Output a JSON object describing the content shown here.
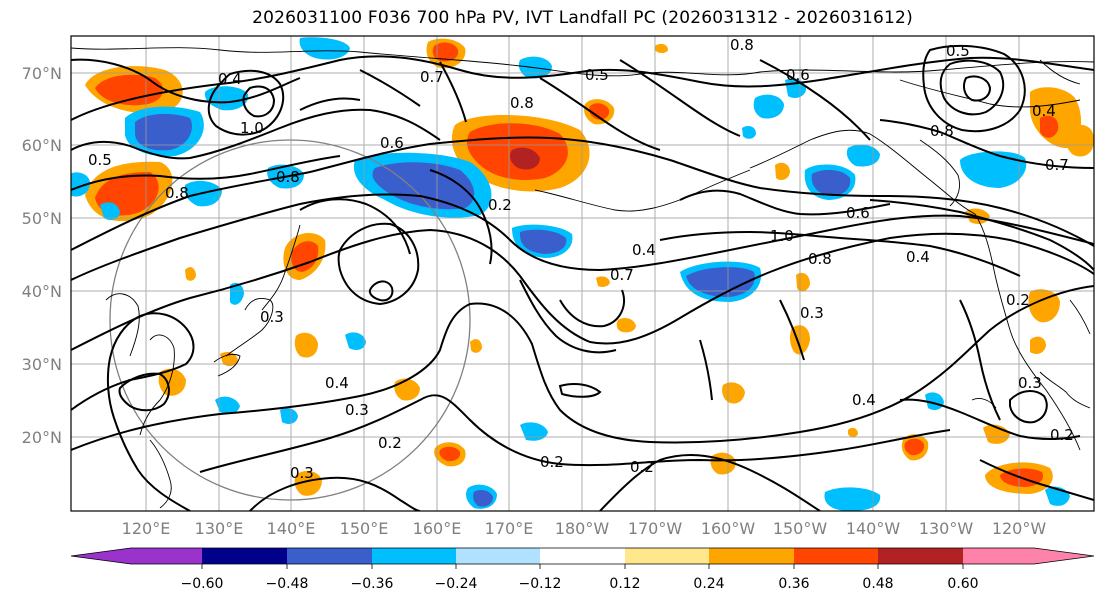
{
  "title": "2026031100 F036 700 hPa PV, IVT Landfall PC (2026031312 - 2026031612)",
  "lat_labels": [
    "70°N",
    "60°N",
    "50°N",
    "40°N",
    "30°N",
    "20°N"
  ],
  "lon_labels": [
    "120°E",
    "130°E",
    "140°E",
    "150°E",
    "160°E",
    "170°E",
    "180°W",
    "170°W",
    "160°W",
    "150°W",
    "140°W",
    "130°W",
    "120°W"
  ],
  "colorbar": {
    "colors": [
      "#9933cc",
      "#00008b",
      "#3a5fcd",
      "#00bfff",
      "#b0e2ff",
      "#ffffff",
      "#ffe88c",
      "#ffa500",
      "#ff4500",
      "#b22222",
      "#ff82ab"
    ],
    "tick_labels": [
      "−0.60",
      "−0.48",
      "−0.36",
      "−0.24",
      "−0.12",
      "0.12",
      "0.24",
      "0.36",
      "0.48",
      "0.60"
    ]
  },
  "contour_labels": [
    "0.4",
    "0.7",
    "0.5",
    "0.8",
    "0.6",
    "1.0",
    "0.2",
    "0.3",
    "0.7",
    "0.4",
    "0.8",
    "0.3",
    "0.2",
    "0.3",
    "0.4",
    "0.2",
    "0.3",
    "0.2",
    "0.4",
    "0.3",
    "0.2",
    "0.7",
    "0.8",
    "1.0",
    "0.6",
    "0.4",
    "0.5",
    "0.8",
    "0.6",
    "0.8",
    "0.2",
    "0.4",
    "0.5",
    "0.8"
  ]
}
